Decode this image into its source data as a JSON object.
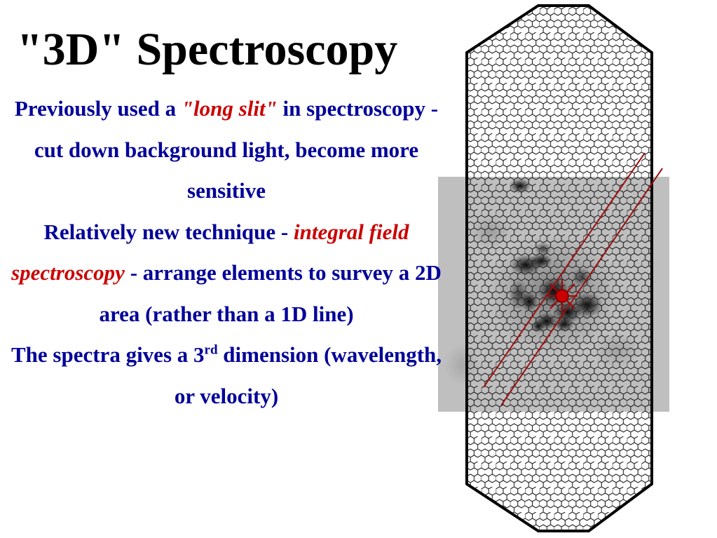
{
  "slide": {
    "title": "\"3D\" Spectroscopy",
    "paragraph1": {
      "before": "Previously used a ",
      "highlight": "\"long slit\"",
      "after": " in spectroscopy - cut down background light, become more sensitive"
    },
    "paragraph2": {
      "before": "Relatively new technique - ",
      "highlight": "integral field spectroscopy",
      "after": " - arrange elements to survey a 2D area (rather than a 1D line)"
    },
    "paragraph3": {
      "before": "The spectra gives a 3",
      "superscript": "rd",
      "after": " dimension (wavelength, or velocity)"
    }
  },
  "colors": {
    "body_text": "#000099",
    "highlight": "#cc0000",
    "slit_lines": "#991111",
    "marker": "#cc0000"
  },
  "figure": {
    "icons": [
      "hexagonal-fiber-array-icon",
      "galaxy-image-icon",
      "long-slit-lines-icon",
      "target-marker-icon"
    ]
  }
}
